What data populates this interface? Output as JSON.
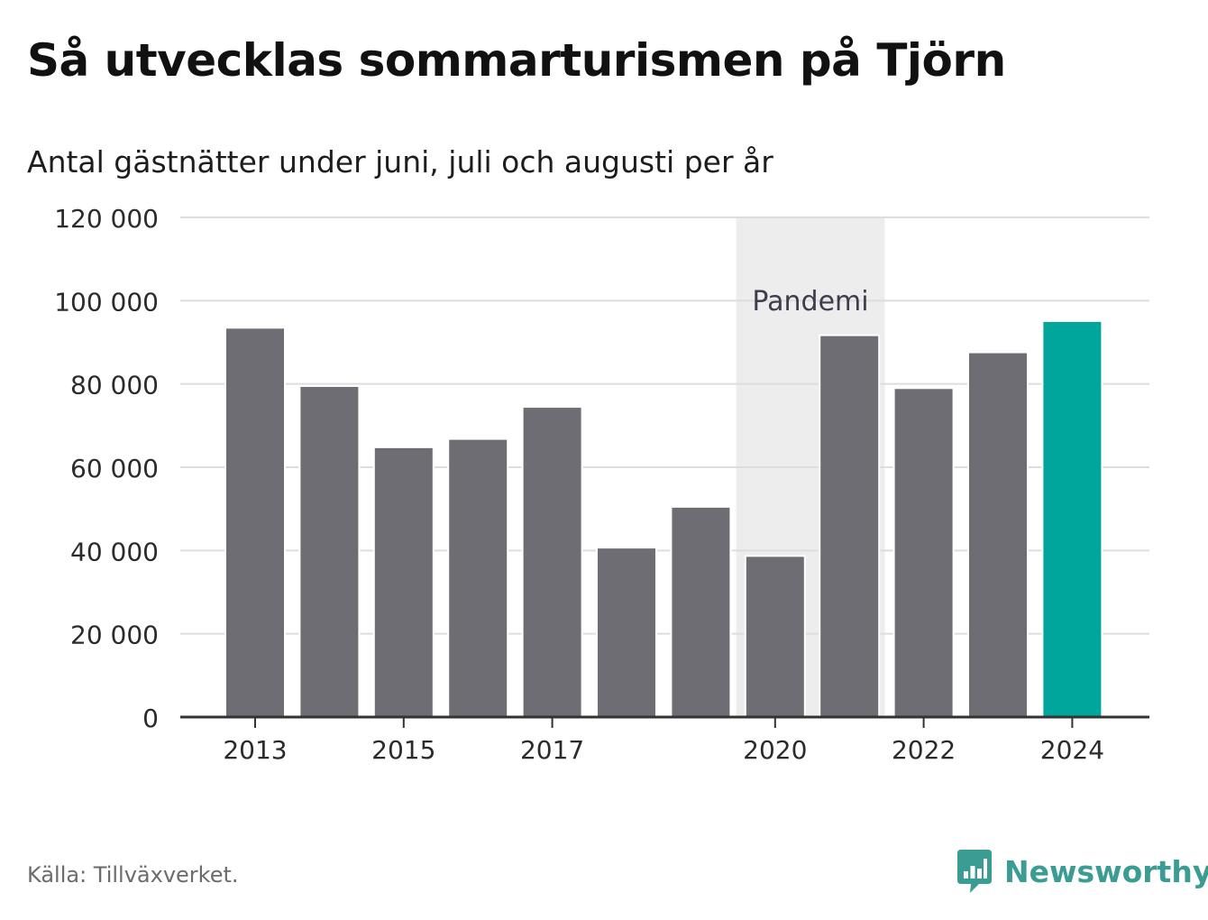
{
  "title": "Så utvecklas sommarturismen på Tjörn",
  "subtitle": "Antal gästnätter under juni, juli och augusti per år",
  "source": "Källa: Tillväxverket.",
  "brand": "Newsworthy",
  "colors": {
    "bar": "#6e6d73",
    "highlight": "#00a59b",
    "band": "#ededed",
    "grid": "#dddddd",
    "axis": "#333333",
    "brand": "#3a9c93"
  },
  "chart_data": {
    "type": "bar",
    "x": [
      2013,
      2014,
      2015,
      2016,
      2017,
      2018,
      2019,
      2020,
      2021,
      2022,
      2023,
      2024
    ],
    "values": [
      93500,
      79500,
      64800,
      66800,
      74500,
      40700,
      50500,
      38700,
      91700,
      79000,
      87600,
      95100
    ],
    "highlight_index": 11,
    "ylim": [
      0,
      120000
    ],
    "y_ticks": [
      0,
      20000,
      40000,
      60000,
      80000,
      100000,
      120000
    ],
    "y_tick_labels": [
      "0",
      "20 000",
      "40 000",
      "60 000",
      "80 000",
      "100 000",
      "120 000"
    ],
    "x_ticks": [
      2013,
      2015,
      2017,
      2020,
      2022,
      2024
    ],
    "x_tick_labels": [
      "2013",
      "2015",
      "2017",
      "2020",
      "2022",
      "2024"
    ],
    "band": {
      "label": "Pandemi",
      "from": 2020,
      "to": 2021
    },
    "grid": true,
    "xlabel": "",
    "ylabel": ""
  }
}
